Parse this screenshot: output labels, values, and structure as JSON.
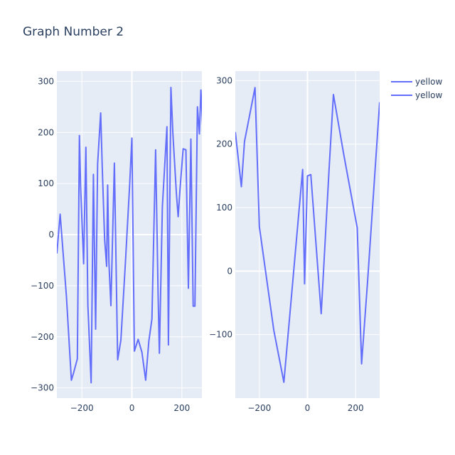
{
  "title": "Graph Number 2",
  "colors": {
    "line": "#636efa",
    "plot_bg": "#e5ecf6",
    "grid": "#ffffff",
    "text": "#2a3f5f"
  },
  "legend": {
    "placement": "top-right",
    "items": [
      "yellow",
      "yellow"
    ]
  },
  "chart_data": [
    {
      "type": "line",
      "series": [
        {
          "name": "yellow",
          "x": [
            -300,
            -287,
            -262,
            -242,
            -233,
            -218,
            -210,
            -205,
            -193,
            -184,
            -176,
            -163,
            -154,
            -145,
            -137,
            -125,
            -118,
            -109,
            -101,
            -97,
            -92,
            -84,
            -70,
            -57,
            -44,
            -26,
            -9,
            0,
            10,
            25,
            40,
            55,
            68,
            80,
            95,
            105,
            110,
            122,
            140,
            146,
            156,
            164,
            178,
            185,
            192,
            205,
            216,
            226,
            236,
            245,
            252,
            262,
            270,
            276,
            283,
            290
          ],
          "y": [
            -37,
            40,
            -120,
            -285,
            -270,
            -243,
            194,
            95,
            -57,
            171,
            -138,
            -290,
            118,
            -185,
            138,
            238,
            124,
            -10,
            -62,
            97,
            -54,
            -139,
            140,
            -245,
            -207,
            -55,
            98,
            189,
            -228,
            -205,
            -230,
            -285,
            -208,
            -165,
            166,
            -118,
            -232,
            55,
            211,
            -216,
            288,
            197,
            81,
            35,
            85,
            168,
            166,
            -105,
            187,
            -140,
            -140,
            250,
            197,
            283,
            210,
            238
          ]
        }
      ],
      "xlim": [
        -300,
        280
      ],
      "ylim": [
        -320,
        320
      ],
      "xticks": [
        -200,
        0,
        200
      ],
      "yticks": [
        -300,
        -200,
        -100,
        0,
        100,
        200,
        300
      ]
    },
    {
      "type": "line",
      "series": [
        {
          "name": "yellow",
          "x": [
            -300,
            -275,
            -262,
            -218,
            -200,
            -140,
            -98,
            -20,
            -12,
            0,
            14,
            57,
            90,
            108,
            150,
            207,
            225,
            250,
            300
          ],
          "y": [
            219,
            133,
            204,
            289,
            70,
            -93,
            -175,
            160,
            -20,
            150,
            152,
            -67,
            163,
            278,
            185,
            68,
            -146,
            -15,
            266
          ],
          "markers_y": []
        }
      ],
      "xlim": [
        -300,
        300
      ],
      "ylim": [
        -200,
        315
      ],
      "xticks": [
        -200,
        0,
        200
      ],
      "yticks": [
        -100,
        0,
        100,
        200,
        300
      ]
    }
  ]
}
